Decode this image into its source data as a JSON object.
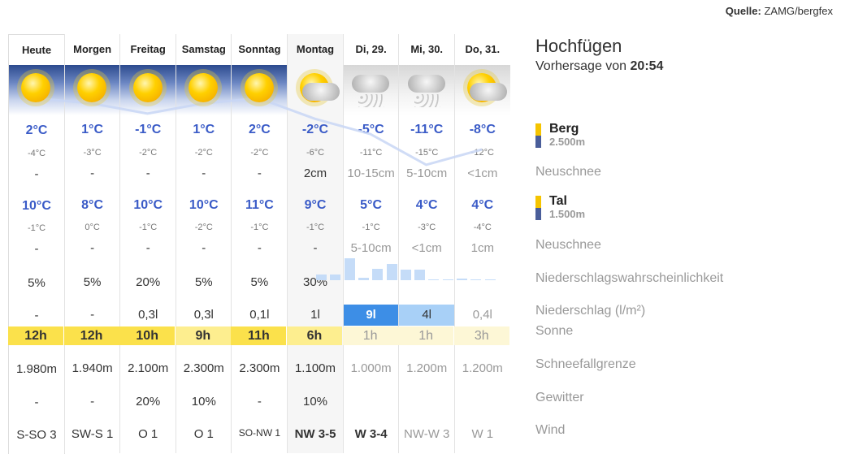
{
  "source": {
    "label": "Quelle:",
    "value": "ZAMG/bergfex"
  },
  "location": {
    "name": "Hochfügen",
    "forecast_prefix": "Vorhersage von",
    "forecast_time": "20:54"
  },
  "legend": {
    "berg": {
      "label": "Berg",
      "height": "2.500m"
    },
    "tal": {
      "label": "Tal",
      "height": "1.500m"
    },
    "colors": {
      "top": "#f5c400",
      "bottom": "#4a5e9a"
    }
  },
  "row_labels": {
    "berg_neuschnee": "Neuschnee",
    "tal_neuschnee": "Neuschnee",
    "probability": "Niederschlagswahrscheinlichkeit",
    "precip": "Niederschlag (l/m²)",
    "sun": "Sonne",
    "snowline": "Schneefallgrenze",
    "thunder": "Gewitter",
    "wind": "Wind"
  },
  "days": [
    {
      "name": "Heute",
      "icon": "sun-icon",
      "berg_max": "2°C",
      "berg_min": "-4°C",
      "berg_snow": "-",
      "tal_max": "10°C",
      "tal_min": "-1°C",
      "tal_snow": "-",
      "prob": "5%",
      "precip": "-",
      "sun": "12h",
      "snowline": "1.980m",
      "thunder": "-",
      "wind": "S-SO 3"
    },
    {
      "name": "Morgen",
      "icon": "sun-icon",
      "berg_max": "1°C",
      "berg_min": "-3°C",
      "berg_snow": "-",
      "tal_max": "8°C",
      "tal_min": "0°C",
      "tal_snow": "-",
      "prob": "5%",
      "precip": "-",
      "sun": "12h",
      "snowline": "1.940m",
      "thunder": "-",
      "wind": "SW-S 1"
    },
    {
      "name": "Freitag",
      "icon": "sun-icon",
      "berg_max": "-1°C",
      "berg_min": "-2°C",
      "berg_snow": "-",
      "tal_max": "10°C",
      "tal_min": "-1°C",
      "tal_snow": "-",
      "prob": "20%",
      "precip": "0,3l",
      "sun": "10h",
      "snowline": "2.100m",
      "thunder": "20%",
      "wind": "O 1"
    },
    {
      "name": "Samstag",
      "icon": "sun-icon",
      "berg_max": "1°C",
      "berg_min": "-2°C",
      "berg_snow": "-",
      "tal_max": "10°C",
      "tal_min": "-2°C",
      "tal_snow": "-",
      "prob": "5%",
      "precip": "0,3l",
      "sun": "9h",
      "snowline": "2.300m",
      "thunder": "10%",
      "wind": "O 1"
    },
    {
      "name": "Sonntag",
      "icon": "sun-icon",
      "berg_max": "2°C",
      "berg_min": "-2°C",
      "berg_snow": "-",
      "tal_max": "11°C",
      "tal_min": "-1°C",
      "tal_snow": "-",
      "prob": "5%",
      "precip": "0,1l",
      "sun": "11h",
      "snowline": "2.300m",
      "thunder": "-",
      "wind": "SO-NW 1"
    },
    {
      "name": "Montag",
      "icon": "sun-cloud-icon",
      "berg_max": "-2°C",
      "berg_min": "-6°C",
      "berg_snow": "2cm",
      "tal_max": "9°C",
      "tal_min": "-1°C",
      "tal_snow": "-",
      "prob": "30%",
      "precip": "1l",
      "sun": "6h",
      "snowline": "1.100m",
      "thunder": "10%",
      "wind": "NW 3-5"
    },
    {
      "name": "Di, 29.",
      "icon": "snow-cloud-icon",
      "berg_max": "-5°C",
      "berg_min": "-11°C",
      "berg_snow": "10-15cm",
      "tal_max": "5°C",
      "tal_min": "-1°C",
      "tal_snow": "5-10cm",
      "prob": "",
      "precip": "9l",
      "sun": "1h",
      "snowline": "1.000m",
      "thunder": "",
      "wind": "W 3-4"
    },
    {
      "name": "Mi, 30.",
      "icon": "snow-cloud-icon",
      "berg_max": "-11°C",
      "berg_min": "-15°C",
      "berg_snow": "5-10cm",
      "tal_max": "4°C",
      "tal_min": "-3°C",
      "tal_snow": "<1cm",
      "prob": "",
      "precip": "4l",
      "sun": "1h",
      "snowline": "1.200m",
      "thunder": "",
      "wind": "NW-W 3"
    },
    {
      "name": "Do, 31.",
      "icon": "sun-cloud-icon",
      "berg_max": "-8°C",
      "berg_min": "-12°C",
      "berg_snow": "<1cm",
      "tal_max": "4°C",
      "tal_min": "-4°C",
      "tal_snow": "1cm",
      "prob": "",
      "precip": "0,4l",
      "sun": "3h",
      "snowline": "1.200m",
      "thunder": "",
      "wind": "W 1"
    }
  ],
  "berg_max_values": [
    2,
    1,
    -1,
    1,
    2,
    -2,
    -5,
    -11,
    -8
  ],
  "precip_bars": [
    0.26,
    0.26,
    1,
    0.11,
    0.52,
    0.74,
    0.48,
    0.48,
    0.04,
    0,
    0.07,
    0,
    0.04
  ],
  "colors": {
    "max_temp": "#3a5bc7",
    "sun_strong": "#fbe14b",
    "sun_medium": "#fdee8f",
    "sun_weak": "#fdf7d6",
    "precip_heavy": "#3d8ee6",
    "precip_medium": "#a8d0f7",
    "line": "#c8d6f5"
  }
}
